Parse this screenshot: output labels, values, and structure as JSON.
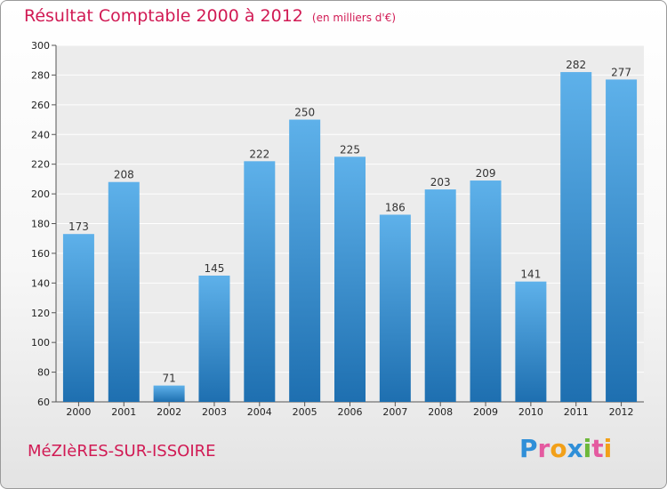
{
  "header": {
    "title": "Résultat Comptable 2000 à 2012",
    "unit": "(en milliers d'€)"
  },
  "footer": {
    "place": "MéZIèRES-SUR-ISSOIRE",
    "logo": "Proxiti",
    "logo_letters": [
      {
        "ch": "P",
        "color": "#2f8fd8"
      },
      {
        "ch": "r",
        "color": "#e45aa0"
      },
      {
        "ch": "o",
        "color": "#f2a019"
      },
      {
        "ch": "x",
        "color": "#2f8fd8"
      },
      {
        "ch": "i",
        "color": "#6db83a"
      },
      {
        "ch": "t",
        "color": "#e45aa0"
      },
      {
        "ch": "i",
        "color": "#f2a019"
      }
    ]
  },
  "colors": {
    "accent": "#d11a54",
    "bar_light": "#5eb1ea",
    "bar_dark": "#1e6fb0"
  },
  "chart_data": {
    "type": "bar",
    "title": "Résultat Comptable 2000 à 2012",
    "xlabel": "",
    "ylabel": "",
    "ylim": [
      60,
      300
    ],
    "yticks": [
      60,
      80,
      100,
      120,
      140,
      160,
      180,
      200,
      220,
      240,
      260,
      280,
      300
    ],
    "grid": true,
    "categories": [
      "2000",
      "2001",
      "2002",
      "2003",
      "2004",
      "2005",
      "2006",
      "2007",
      "2008",
      "2009",
      "2010",
      "2011",
      "2012"
    ],
    "values": [
      173,
      208,
      71,
      145,
      222,
      250,
      225,
      186,
      203,
      209,
      141,
      282,
      277
    ]
  }
}
